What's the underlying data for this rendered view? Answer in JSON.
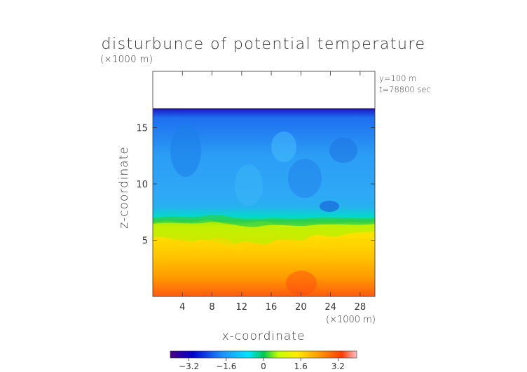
{
  "chart_data": {
    "type": "heatmap",
    "title": "disturbunce of potential temperature",
    "xlabel": "x-coordinate",
    "ylabel": "z-coordinate",
    "x_unit": "(×1000 m)",
    "y_unit": "(×1000 m)",
    "annotations": [
      "y=100 m",
      "t=78800 sec"
    ],
    "xlim": [
      0,
      30
    ],
    "ylim": [
      0,
      20
    ],
    "x_ticks": [
      4,
      8,
      12,
      16,
      20,
      24,
      28
    ],
    "y_ticks": [
      5,
      10,
      15
    ],
    "colorbar": {
      "range": [
        -4,
        4
      ],
      "ticks": [
        "−3.2",
        "−1.6",
        "0",
        "1.6",
        "3.2"
      ],
      "tick_values": [
        -3.2,
        -1.6,
        0,
        1.6,
        3.2
      ],
      "colors": [
        "#4b0082",
        "#0000cd",
        "#1e90ff",
        "#00e5ff",
        "#00c853",
        "#c6ff00",
        "#ffeb00",
        "#ff9800",
        "#ff3d00",
        "#ffc0cb"
      ]
    },
    "field_summary": {
      "no_data_above_z": 17,
      "levels": [
        {
          "z_top": 17,
          "z_bottom": 6.5,
          "value_approx": -1.4
        },
        {
          "z_top": 6.5,
          "z_bottom": 3.5,
          "value_approx": 1.6
        },
        {
          "z_top": 3.5,
          "z_bottom": 0,
          "value_approx": 2.6
        }
      ]
    }
  }
}
